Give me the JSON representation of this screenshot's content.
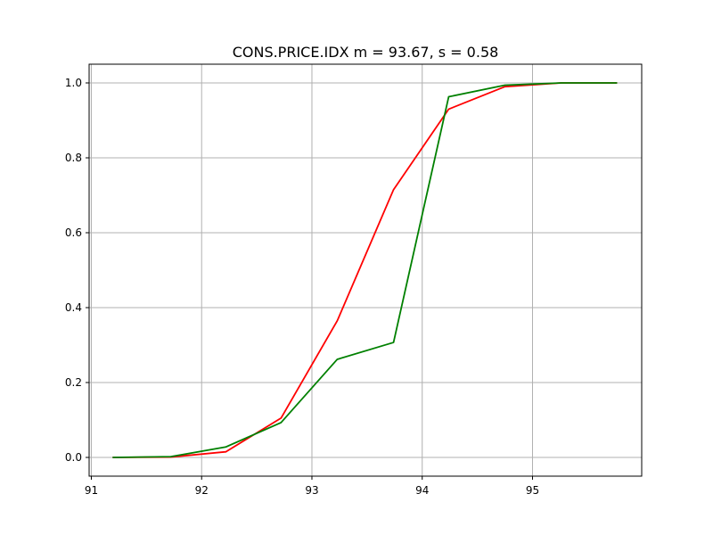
{
  "chart_data": {
    "type": "line",
    "title": "CONS.PRICE.IDX  m = 93.67,  s = 0.58",
    "xlabel": "",
    "ylabel": "",
    "xlim": [
      90.98,
      95.99
    ],
    "ylim": [
      -0.05,
      1.05
    ],
    "xticks": [
      91,
      92,
      93,
      94,
      95
    ],
    "yticks": [
      0.0,
      0.2,
      0.4,
      0.6,
      0.8,
      1.0
    ],
    "xtick_labels": [
      "91",
      "92",
      "93",
      "94",
      "95"
    ],
    "ytick_labels": [
      "0.0",
      "0.2",
      "0.4",
      "0.6",
      "0.8",
      "1.0"
    ],
    "grid": true,
    "series": [
      {
        "color": "#ff0000",
        "x": [
          91.2,
          91.72,
          92.22,
          92.72,
          93.23,
          93.74,
          94.24,
          94.75,
          95.26,
          95.76
        ],
        "y": [
          0.0,
          0.001,
          0.015,
          0.105,
          0.365,
          0.715,
          0.93,
          0.99,
          1.0,
          1.0
        ]
      },
      {
        "color": "#008000",
        "x": [
          91.2,
          91.72,
          92.22,
          92.72,
          93.23,
          93.74,
          94.24,
          94.75,
          95.26,
          95.76
        ],
        "y": [
          0.0,
          0.002,
          0.028,
          0.093,
          0.262,
          0.307,
          0.963,
          0.994,
          1.0,
          1.0
        ]
      }
    ]
  }
}
